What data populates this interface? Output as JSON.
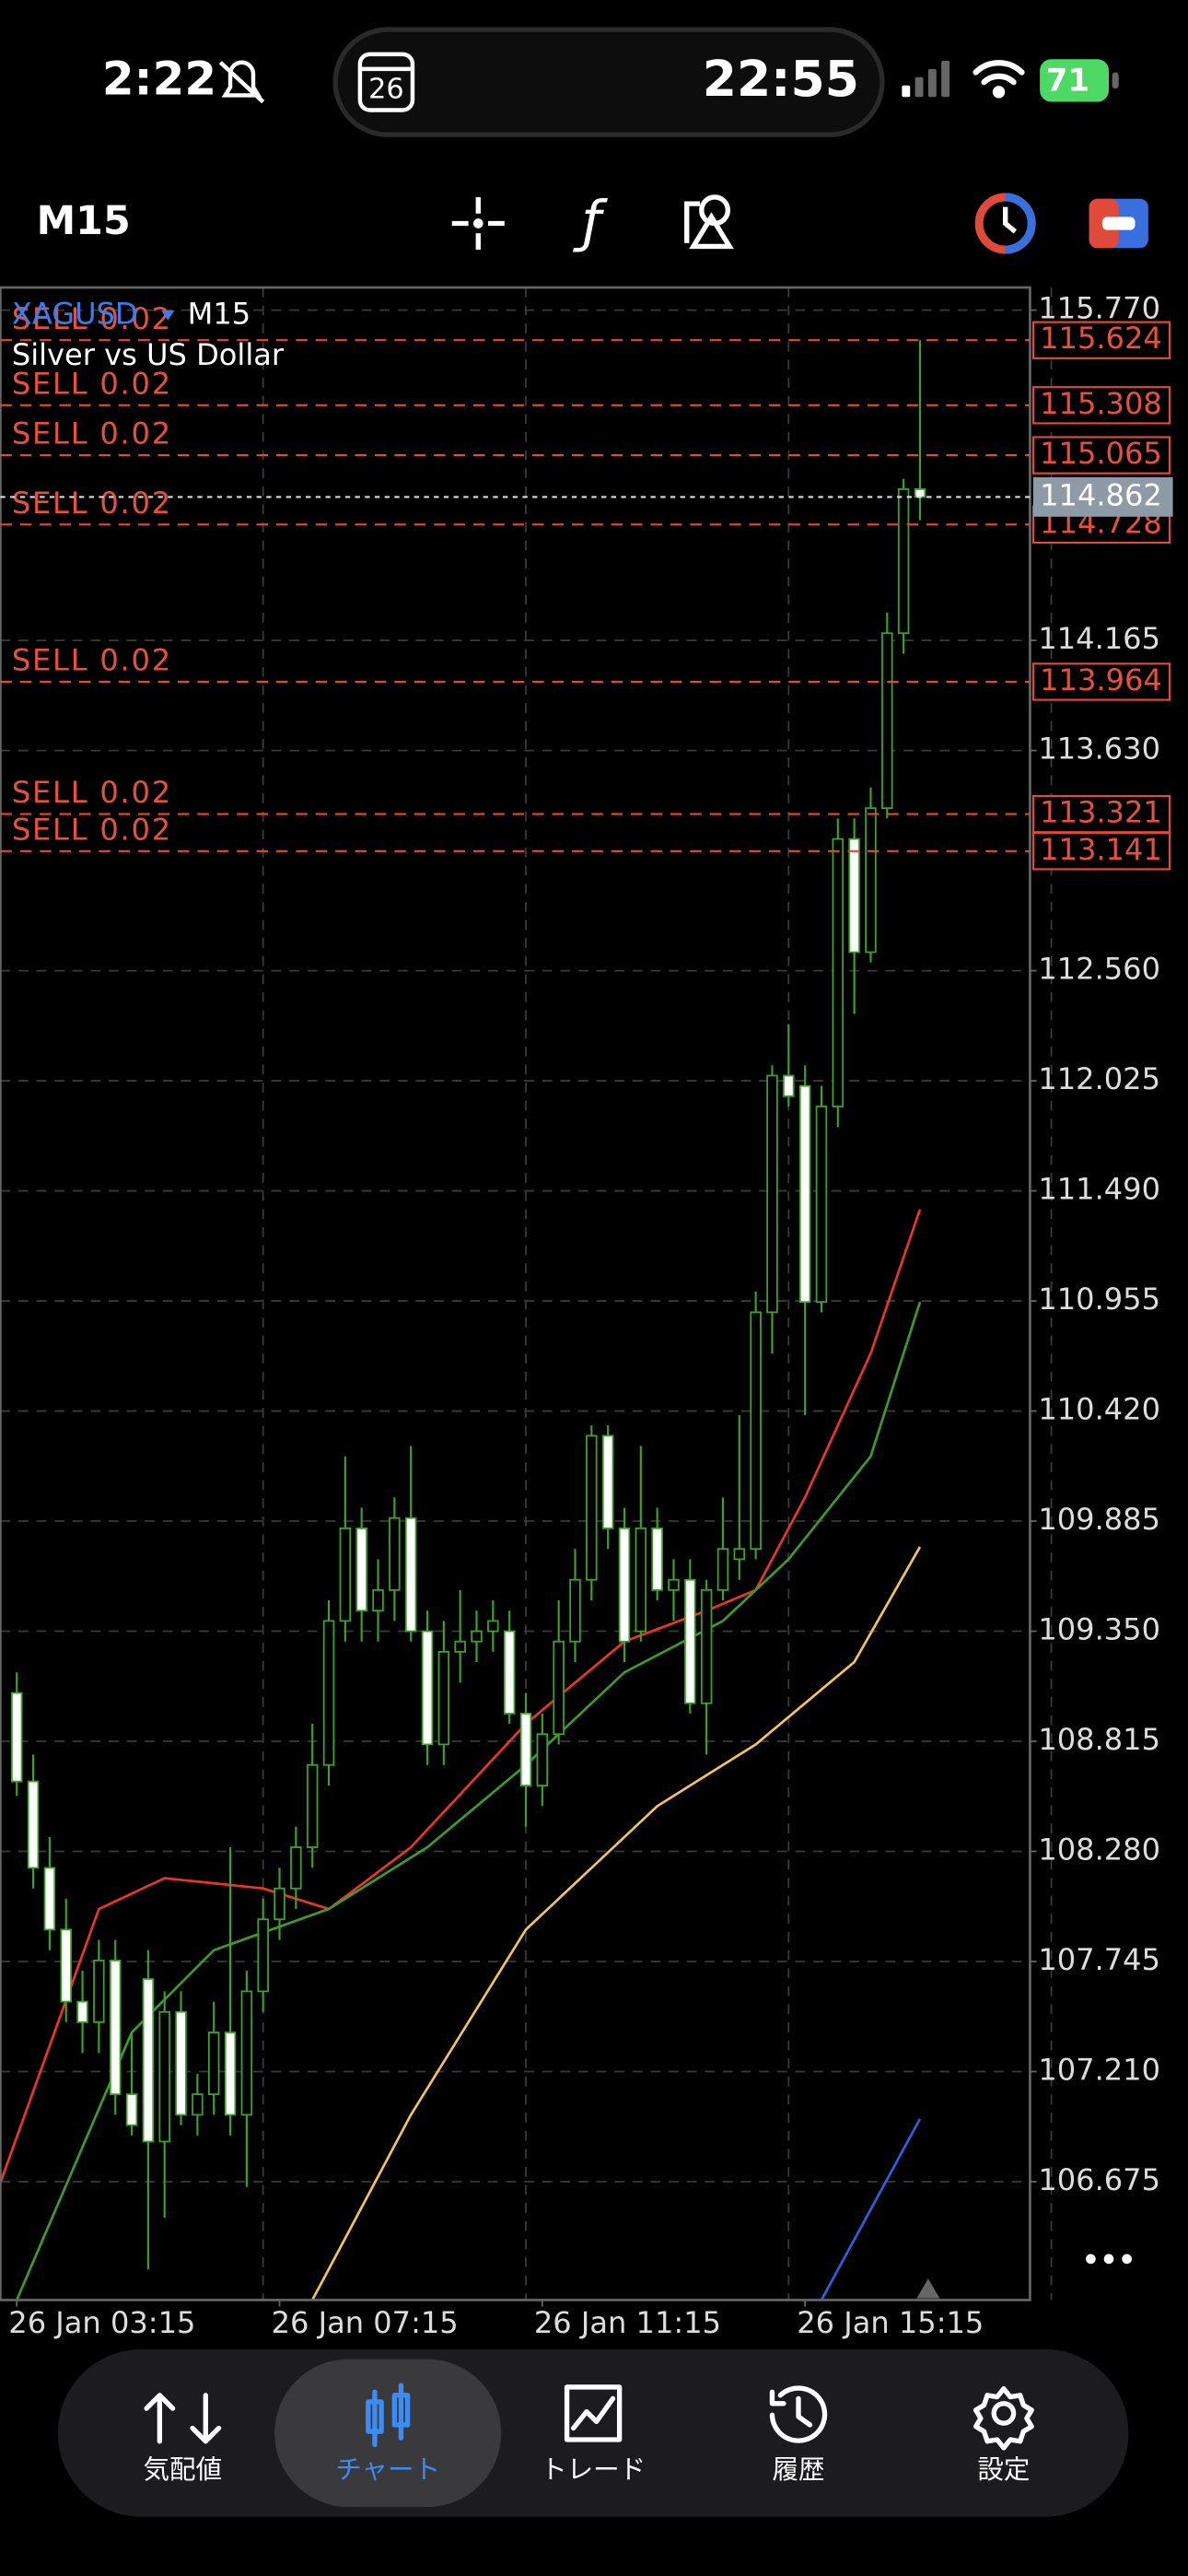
{
  "status_bar": {
    "time": "2:22",
    "calendar_day": "26",
    "clock": "22:55",
    "battery": "71"
  },
  "toolbar": {
    "timeframe": "M15",
    "indicator_icon": "ƒ"
  },
  "chart_data": {
    "type": "candlestick",
    "symbol": "XAGUSD",
    "timeframe": "M15",
    "subtitle": "Silver vs US Dollar",
    "x": [
      0,
      1,
      2,
      3,
      4,
      5,
      6,
      7,
      8,
      9,
      10,
      11,
      12,
      13,
      14,
      15,
      16,
      17,
      18,
      19,
      20,
      21,
      22,
      23,
      24,
      25,
      26,
      27,
      28,
      29,
      30,
      31,
      32,
      33,
      34,
      35,
      36,
      37,
      38,
      39,
      40,
      41,
      42,
      43,
      44,
      45,
      46,
      47,
      48,
      49,
      50,
      51,
      52,
      53,
      54,
      55
    ],
    "open": [
      109.05,
      108.62,
      108.2,
      107.9,
      107.55,
      107.45,
      107.75,
      107.1,
      107.66,
      106.87,
      107.5,
      107.0,
      107.1,
      107.4,
      107.0,
      107.6,
      107.95,
      108.1,
      108.3,
      108.7,
      109.4,
      109.85,
      109.45,
      109.55,
      109.9,
      109.35,
      108.8,
      109.25,
      109.3,
      109.35,
      109.35,
      108.95,
      108.6,
      108.85,
      109.3,
      109.6,
      110.3,
      109.85,
      109.35,
      109.85,
      109.55,
      109.6,
      109.0,
      109.55,
      109.7,
      109.75,
      110.9,
      112.05,
      112.0,
      110.95,
      111.9,
      113.2,
      112.65,
      113.35,
      114.2,
      114.9
    ],
    "high": [
      109.15,
      108.75,
      108.35,
      108.05,
      107.7,
      107.85,
      107.85,
      107.4,
      107.8,
      107.6,
      107.6,
      107.2,
      107.55,
      108.3,
      107.7,
      108.05,
      108.2,
      108.4,
      108.9,
      109.5,
      110.2,
      109.95,
      109.7,
      110.0,
      110.25,
      109.45,
      109.4,
      109.55,
      109.45,
      109.5,
      109.45,
      109.05,
      108.95,
      109.5,
      109.75,
      110.35,
      110.35,
      109.95,
      110.25,
      109.95,
      109.7,
      109.7,
      109.6,
      110.0,
      110.4,
      111.0,
      112.1,
      112.3,
      112.1,
      112.0,
      113.3,
      113.3,
      113.45,
      114.3,
      114.95,
      115.624
    ],
    "low": [
      108.55,
      108.1,
      107.8,
      107.45,
      107.3,
      107.3,
      107.0,
      106.9,
      106.25,
      106.5,
      106.95,
      106.9,
      107.0,
      106.9,
      106.65,
      107.5,
      107.85,
      108.0,
      108.2,
      108.6,
      109.3,
      109.3,
      109.3,
      109.4,
      109.3,
      108.7,
      108.7,
      109.1,
      109.2,
      109.25,
      108.9,
      108.4,
      108.5,
      108.8,
      109.2,
      109.5,
      109.75,
      109.2,
      109.3,
      109.5,
      109.4,
      108.95,
      108.75,
      109.5,
      109.6,
      109.7,
      110.7,
      111.9,
      110.4,
      110.9,
      111.8,
      112.35,
      112.6,
      113.3,
      114.1,
      114.75
    ],
    "close": [
      108.62,
      108.2,
      107.9,
      107.55,
      107.45,
      107.75,
      107.1,
      106.95,
      106.87,
      107.5,
      107.0,
      107.1,
      107.4,
      107.0,
      107.6,
      107.95,
      108.1,
      108.3,
      108.7,
      109.4,
      109.85,
      109.45,
      109.55,
      109.9,
      109.35,
      108.8,
      109.25,
      109.3,
      109.35,
      109.4,
      108.95,
      108.6,
      108.85,
      109.3,
      109.6,
      110.3,
      109.85,
      109.3,
      109.85,
      109.55,
      109.6,
      109.0,
      109.55,
      109.75,
      109.75,
      110.9,
      112.05,
      111.95,
      110.95,
      111.9,
      113.2,
      112.65,
      113.35,
      114.2,
      114.9,
      114.862
    ],
    "up_color": "#3fa02c",
    "down_color": "#ffffff",
    "lines": [
      {
        "color": "#e8362c",
        "x": [
          -1,
          5,
          9,
          15,
          19,
          24,
          31,
          37,
          42,
          45,
          48,
          52,
          55
        ],
        "values": [
          106.67,
          108.0,
          108.15,
          108.1,
          108.0,
          108.3,
          108.9,
          109.3,
          109.45,
          109.55,
          110.0,
          110.7,
          111.4
        ]
      },
      {
        "color": "#3f9a2a",
        "x": [
          0,
          7,
          12,
          19,
          25,
          31,
          37,
          43,
          47,
          52,
          55
        ],
        "values": [
          106.1,
          107.4,
          107.8,
          108.0,
          108.3,
          108.7,
          109.15,
          109.4,
          109.7,
          110.2,
          110.95
        ]
      },
      {
        "color": "#f4c45a",
        "x": [
          18,
          24,
          31,
          39,
          45,
          51,
          55
        ],
        "values": [
          106.1,
          107.0,
          107.9,
          108.5,
          108.8,
          109.2,
          109.76
        ]
      },
      {
        "color": "#2f5fe0",
        "x": [
          49,
          55
        ],
        "values": [
          106.1,
          106.98
        ]
      }
    ],
    "orders": [
      {
        "label": "SELL 0.02",
        "price": 115.624
      },
      {
        "label": "SELL 0.02",
        "price": 115.308
      },
      {
        "label": "SELL 0.02",
        "price": 115.065
      },
      {
        "label": "SELL 0.02",
        "price": 114.728
      },
      {
        "label": "SELL 0.02",
        "price": 113.964
      },
      {
        "label": "SELL 0.02",
        "price": 113.321
      },
      {
        "label": "SELL 0.02",
        "price": 113.141
      }
    ],
    "current_price": 114.862,
    "xlim": [
      -1,
      61.7
    ],
    "ylim": [
      106.1,
      115.88
    ],
    "xticks": [
      {
        "value": 0,
        "label": "26 Jan 03:15"
      },
      {
        "value": 16,
        "label": "26 Jan 07:15"
      },
      {
        "value": 32,
        "label": "26 Jan 11:15"
      },
      {
        "value": 48,
        "label": "26 Jan 15:15"
      }
    ],
    "yticks": [
      {
        "value": 115.77,
        "label": "115.770"
      },
      {
        "value": 114.165,
        "label": "114.165"
      },
      {
        "value": 113.63,
        "label": "113.630"
      },
      {
        "value": 112.56,
        "label": "112.560"
      },
      {
        "value": 112.025,
        "label": "112.025"
      },
      {
        "value": 111.49,
        "label": "111.490"
      },
      {
        "value": 110.955,
        "label": "110.955"
      },
      {
        "value": 110.42,
        "label": "110.420"
      },
      {
        "value": 109.885,
        "label": "109.885"
      },
      {
        "value": 109.35,
        "label": "109.350"
      },
      {
        "value": 108.815,
        "label": "108.815"
      },
      {
        "value": 108.28,
        "label": "108.280"
      },
      {
        "value": 107.745,
        "label": "107.745"
      },
      {
        "value": 107.21,
        "label": "107.210"
      },
      {
        "value": 106.675,
        "label": "106.675"
      }
    ],
    "grid": true
  },
  "nav": {
    "items": [
      {
        "label": "気配値"
      },
      {
        "label": "チャート"
      },
      {
        "label": "トレード"
      },
      {
        "label": "履歴"
      },
      {
        "label": "設定"
      }
    ],
    "selected": 1
  }
}
